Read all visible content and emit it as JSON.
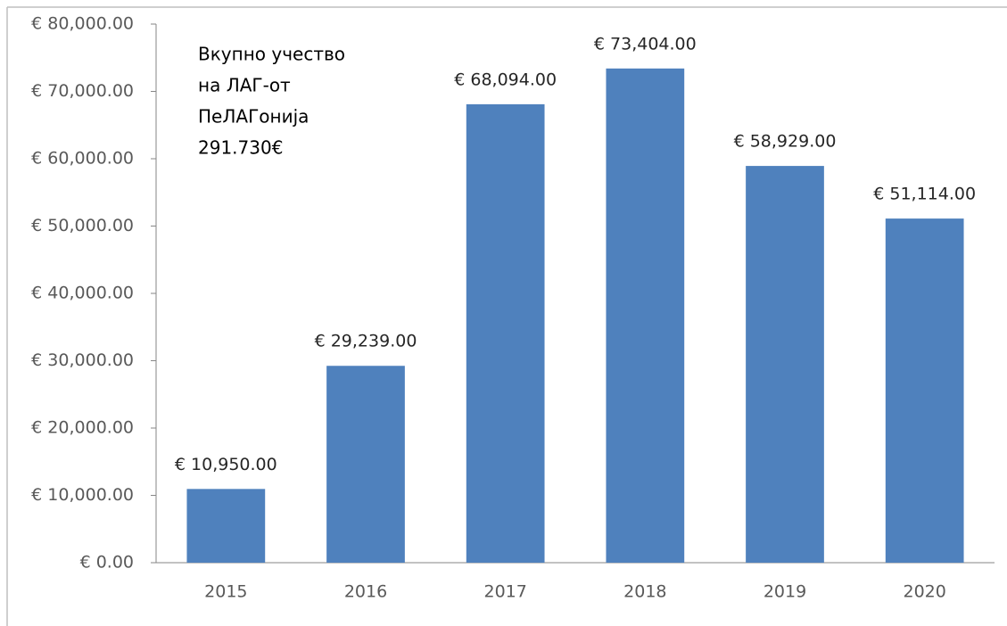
{
  "chart_data": {
    "type": "bar",
    "annotation": [
      "Вкупно учество",
      "на ЛАГ-от",
      "ПеЛАГонија",
      "291.730€"
    ],
    "categories": [
      "2015",
      "2016",
      "2017",
      "2018",
      "2019",
      "2020"
    ],
    "values": [
      10950,
      29239,
      68094,
      73404,
      58929,
      51114
    ],
    "value_labels": [
      "€ 10,950.00",
      "€ 29,239.00",
      "€ 68,094.00",
      "€ 73,404.00",
      "€ 58,929.00",
      "€ 51,114.00"
    ],
    "color": "#4f81bd",
    "ylim": [
      0,
      80000
    ],
    "yticks": [
      {
        "value": 0,
        "label": "€ 0.00"
      },
      {
        "value": 10000,
        "label": "€ 10,000.00"
      },
      {
        "value": 20000,
        "label": "€ 20,000.00"
      },
      {
        "value": 30000,
        "label": "€ 30,000.00"
      },
      {
        "value": 40000,
        "label": "€ 40,000.00"
      },
      {
        "value": 50000,
        "label": "€ 50,000.00"
      },
      {
        "value": 60000,
        "label": "€ 60,000.00"
      },
      {
        "value": 70000,
        "label": "€ 70,000.00"
      },
      {
        "value": 80000,
        "label": "€ 80,000.00"
      }
    ],
    "grid": false
  }
}
